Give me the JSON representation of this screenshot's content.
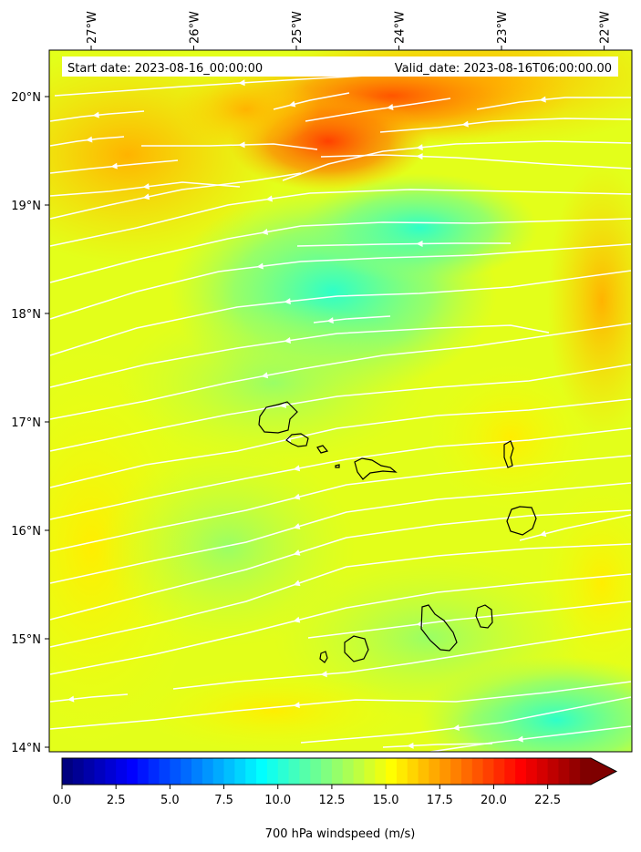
{
  "map": {
    "header": {
      "start_text": "Start date: 2023-08-16_00:00:00",
      "valid_text": "Valid_date: 2023-08-16T06:00:00.00"
    },
    "lon_ticks": [
      {
        "value": -27,
        "label": "27°W"
      },
      {
        "value": -26,
        "label": "26°W"
      },
      {
        "value": -25,
        "label": "25°W"
      },
      {
        "value": -24,
        "label": "24°W"
      },
      {
        "value": -23,
        "label": "23°W"
      },
      {
        "value": -22,
        "label": "22°W"
      }
    ],
    "lat_ticks": [
      {
        "value": 20,
        "label": "20°N"
      },
      {
        "value": 19,
        "label": "19°N"
      },
      {
        "value": 18,
        "label": "18°N"
      },
      {
        "value": 17,
        "label": "17°N"
      },
      {
        "value": 16,
        "label": "16°N"
      },
      {
        "value": 15,
        "label": "15°N"
      },
      {
        "value": 14,
        "label": "14°N"
      }
    ],
    "variable": "700 hPa windspeed",
    "streamline_color": "#ffffff",
    "coastline_color": "#000000"
  },
  "colorbar": {
    "label": "700 hPa windspeed (m/s)",
    "colormap": "jet",
    "min": 0.0,
    "max": 25.0,
    "extend": "max",
    "ticks": [
      "0.0",
      "2.5",
      "5.0",
      "7.5",
      "10.0",
      "12.5",
      "15.0",
      "17.5",
      "20.0",
      "22.5"
    ]
  }
}
